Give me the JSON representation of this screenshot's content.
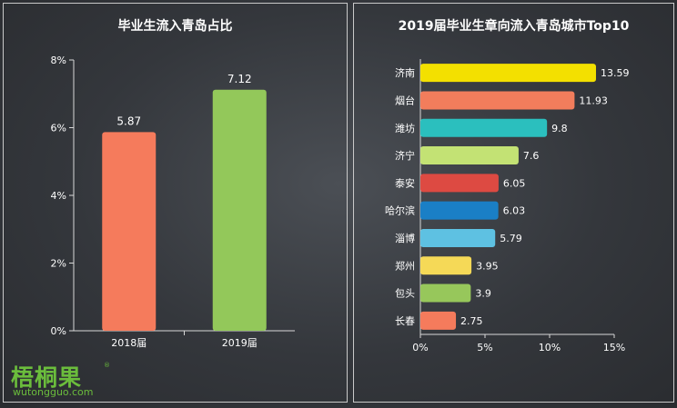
{
  "chart_data": [
    {
      "type": "bar",
      "title": "毕业生流入青岛占比",
      "categories": [
        "2018届",
        "2019届"
      ],
      "values": [
        5.87,
        7.12
      ],
      "data_labels": [
        "5.87",
        "7.12"
      ],
      "ylim": [
        0,
        8
      ],
      "yticks": [
        "0%",
        "2%",
        "4%",
        "6%",
        "8%"
      ],
      "ytick_values": [
        0,
        2,
        4,
        6,
        8
      ],
      "colors": [
        "#f57b5c",
        "#93c85a"
      ],
      "grid": false
    },
    {
      "type": "bar",
      "orientation": "horizontal",
      "title": "2019届毕业生章向流入青岛城市Top10",
      "categories": [
        "济南",
        "烟台",
        "潍坊",
        "济宁",
        "泰安",
        "哈尔滨",
        "淄博",
        "郑州",
        "包头",
        "长春"
      ],
      "values": [
        13.59,
        11.93,
        9.8,
        7.6,
        6.05,
        6.03,
        5.79,
        3.95,
        3.9,
        2.75
      ],
      "data_labels": [
        "13.59",
        "11.93",
        "9.8",
        "7.6",
        "6.05",
        "6.03",
        "5.79",
        "3.95",
        "3.9",
        "2.75"
      ],
      "xlim": [
        0,
        15
      ],
      "xticks": [
        "0%",
        "5%",
        "10%",
        "15%"
      ],
      "xtick_values": [
        0,
        5,
        10,
        15
      ],
      "colors": [
        "#f3e000",
        "#f27d5c",
        "#2bbfbe",
        "#c3e274",
        "#dd4a42",
        "#1a7fc6",
        "#5ec1e2",
        "#f5d957",
        "#97c75b",
        "#f57b5c"
      ],
      "grid": false
    }
  ],
  "logo": {
    "text": "梧桐果",
    "reg_mark": "®",
    "url": "wutongguo.com",
    "color": "#6bbd3c"
  }
}
